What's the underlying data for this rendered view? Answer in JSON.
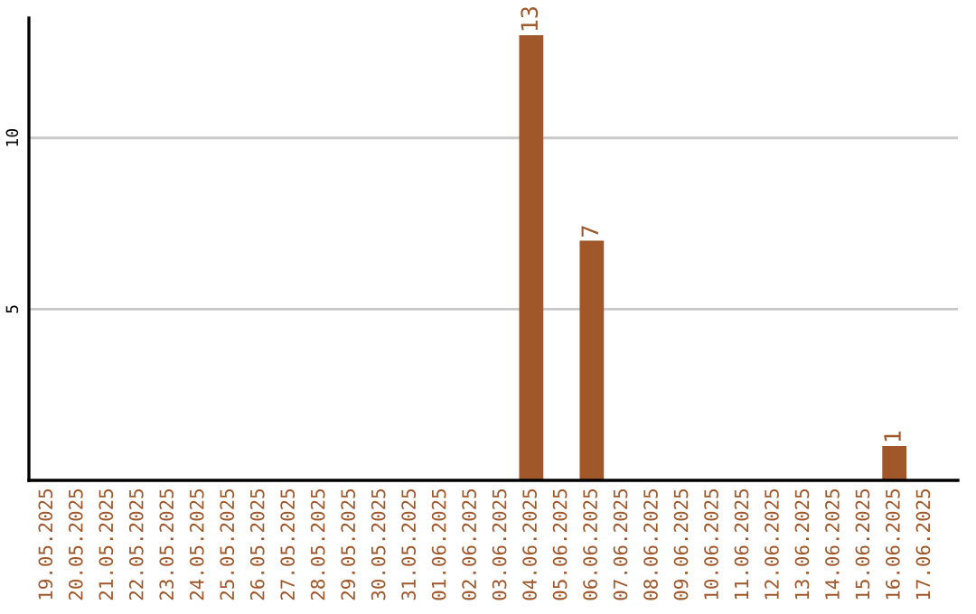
{
  "chart_data": {
    "type": "bar",
    "categories": [
      "19.05.2025",
      "20.05.2025",
      "21.05.2025",
      "22.05.2025",
      "23.05.2025",
      "24.05.2025",
      "25.05.2025",
      "26.05.2025",
      "27.05.2025",
      "28.05.2025",
      "29.05.2025",
      "30.05.2025",
      "31.05.2025",
      "01.06.2025",
      "02.06.2025",
      "03.06.2025",
      "04.06.2025",
      "05.06.2025",
      "06.06.2025",
      "07.06.2025",
      "08.06.2025",
      "09.06.2025",
      "10.06.2025",
      "11.06.2025",
      "12.06.2025",
      "13.06.2025",
      "14.06.2025",
      "15.06.2025",
      "16.06.2025",
      "17.06.2025"
    ],
    "values": [
      0,
      0,
      0,
      0,
      0,
      0,
      0,
      0,
      0,
      0,
      0,
      0,
      0,
      0,
      0,
      0,
      13,
      0,
      7,
      0,
      0,
      0,
      0,
      0,
      0,
      0,
      0,
      0,
      1,
      0
    ],
    "value_labels": [
      null,
      null,
      null,
      null,
      null,
      null,
      null,
      null,
      null,
      null,
      null,
      null,
      null,
      null,
      null,
      null,
      "13",
      null,
      "7",
      null,
      null,
      null,
      null,
      null,
      null,
      null,
      null,
      null,
      "1",
      null
    ],
    "color": "#a0572a",
    "ylim": [
      0,
      13.5
    ],
    "yticks": [
      5,
      10
    ],
    "grid": "y"
  }
}
